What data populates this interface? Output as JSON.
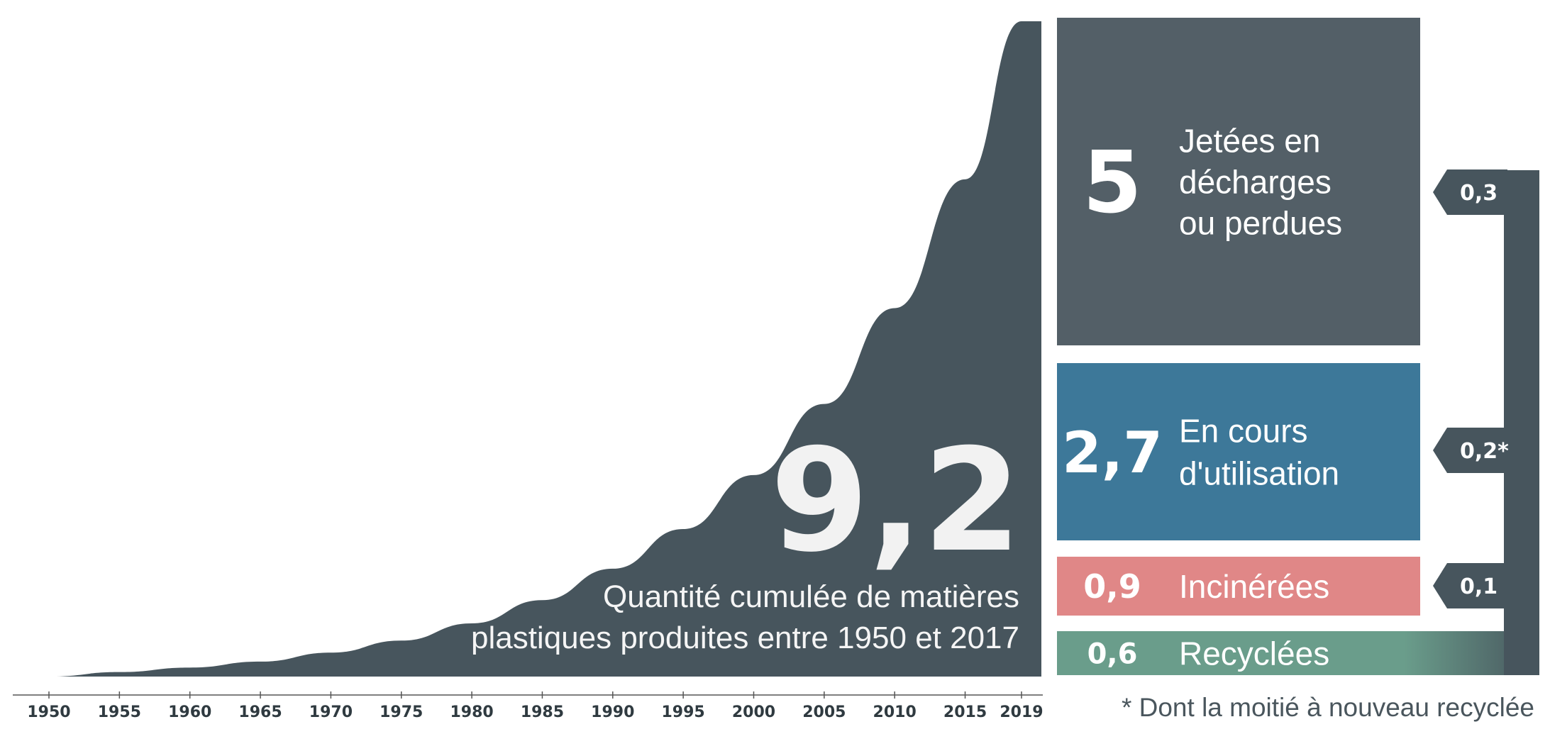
{
  "chart_data": {
    "type": "area",
    "x_ticks": [
      "1950",
      "1955",
      "1960",
      "1965",
      "1970",
      "1975",
      "1980",
      "1985",
      "1990",
      "1995",
      "2000",
      "2005",
      "2010",
      "2015",
      "2019"
    ],
    "x": [
      1950,
      1955,
      1960,
      1965,
      1970,
      1975,
      1980,
      1985,
      1990,
      1995,
      2000,
      2005,
      2010,
      2015,
      2019
    ],
    "values": [
      0,
      0.06,
      0.12,
      0.2,
      0.32,
      0.48,
      0.71,
      1.02,
      1.44,
      1.97,
      2.69,
      3.64,
      4.92,
      6.64,
      8.75
    ],
    "ylim": [
      0,
      8.75
    ],
    "total": {
      "value": "9,2",
      "caption": [
        "Quantité cumulée de matières",
        "plastiques produites entre 1950 et 2017"
      ]
    },
    "breakdown": [
      {
        "value": "5",
        "label": [
          "Jetées en",
          "décharges",
          "ou perdues"
        ],
        "amount": 5.0,
        "color": "#535f67"
      },
      {
        "value": "2,7",
        "label": [
          "En cours",
          "d'utilisation"
        ],
        "amount": 2.7,
        "color": "#3d7899"
      },
      {
        "value": "0,9",
        "label": [
          "Incinérées"
        ],
        "amount": 0.9,
        "color": "#e08787"
      },
      {
        "value": "0,6",
        "label": [
          "Recyclées"
        ],
        "amount": 0.6,
        "color": "#6a9d8b"
      }
    ],
    "flows": [
      {
        "value": "0,3"
      },
      {
        "value": "0,2*"
      },
      {
        "value": "0,1"
      }
    ],
    "footnote": "* Dont la moitié à nouveau recyclée",
    "colors": {
      "area": "#47555d",
      "axis": "#555555",
      "flow": "#47555d",
      "background": "#ffffff"
    }
  }
}
